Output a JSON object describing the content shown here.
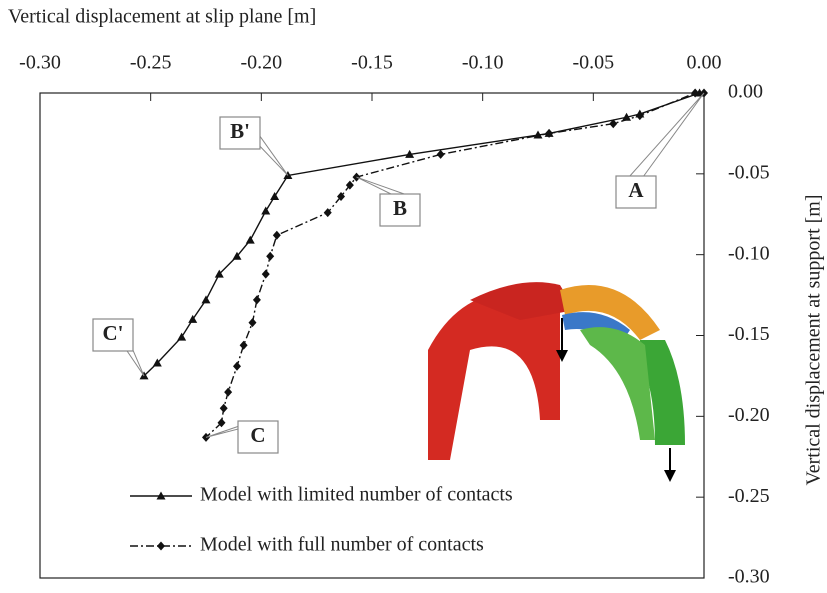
{
  "chart_data": {
    "type": "line",
    "x_label": "Vertical displacement at slip plane [m]",
    "y_label": "Vertical displacement at support [m]",
    "xlim": [
      -0.3,
      0.0
    ],
    "ylim": [
      -0.3,
      0.0
    ],
    "xticks": [
      {
        "value": -0.3,
        "label": "-0.30"
      },
      {
        "value": -0.25,
        "label": "-0.25"
      },
      {
        "value": -0.2,
        "label": "-0.20"
      },
      {
        "value": -0.15,
        "label": "-0.15"
      },
      {
        "value": -0.1,
        "label": "-0.10"
      },
      {
        "value": -0.05,
        "label": "-0.05"
      },
      {
        "value": 0.0,
        "label": "0.00"
      }
    ],
    "yticks": [
      {
        "value": 0.0,
        "label": "0.00"
      },
      {
        "value": -0.05,
        "label": "-0.05"
      },
      {
        "value": -0.1,
        "label": "-0.10"
      },
      {
        "value": -0.15,
        "label": "-0.15"
      },
      {
        "value": -0.2,
        "label": "-0.20"
      },
      {
        "value": -0.25,
        "label": "-0.25"
      },
      {
        "value": -0.3,
        "label": "-0.30"
      }
    ],
    "series": [
      {
        "name": "Model with limited number of contacts",
        "color": "#111111",
        "marker": "triangle",
        "linestyle": "solid",
        "x": [
          -0.002,
          -0.029,
          -0.035,
          -0.07,
          -0.075,
          -0.133,
          -0.188,
          -0.194,
          -0.198,
          -0.205,
          -0.211,
          -0.219,
          -0.225,
          -0.231,
          -0.236,
          -0.247,
          -0.253
        ],
        "values": [
          0.0,
          -0.013,
          -0.015,
          -0.025,
          -0.026,
          -0.038,
          -0.051,
          -0.064,
          -0.073,
          -0.091,
          -0.101,
          -0.112,
          -0.128,
          -0.14,
          -0.151,
          -0.167,
          -0.175
        ]
      },
      {
        "name": "Model with full number of contacts",
        "color": "#111111",
        "marker": "diamond",
        "linestyle": "dashdot",
        "x": [
          0.0,
          -0.004,
          -0.029,
          -0.041,
          -0.07,
          -0.119,
          -0.157,
          -0.16,
          -0.164,
          -0.17,
          -0.193,
          -0.196,
          -0.198,
          -0.202,
          -0.204,
          -0.208,
          -0.211,
          -0.215,
          -0.217,
          -0.218,
          -0.225
        ],
        "values": [
          0.0,
          0.0,
          -0.014,
          -0.019,
          -0.025,
          -0.038,
          -0.052,
          -0.057,
          -0.064,
          -0.074,
          -0.088,
          -0.101,
          -0.112,
          -0.128,
          -0.142,
          -0.156,
          -0.169,
          -0.185,
          -0.195,
          -0.204,
          -0.213
        ]
      }
    ],
    "annotations": [
      {
        "text": "A",
        "x": 0.0,
        "y": 0.0
      },
      {
        "text": "B'",
        "x": -0.188,
        "y": -0.051
      },
      {
        "text": "B",
        "x": -0.157,
        "y": -0.052
      },
      {
        "text": "C'",
        "x": -0.253,
        "y": -0.175
      },
      {
        "text": "C",
        "x": -0.225,
        "y": -0.213
      }
    ]
  }
}
